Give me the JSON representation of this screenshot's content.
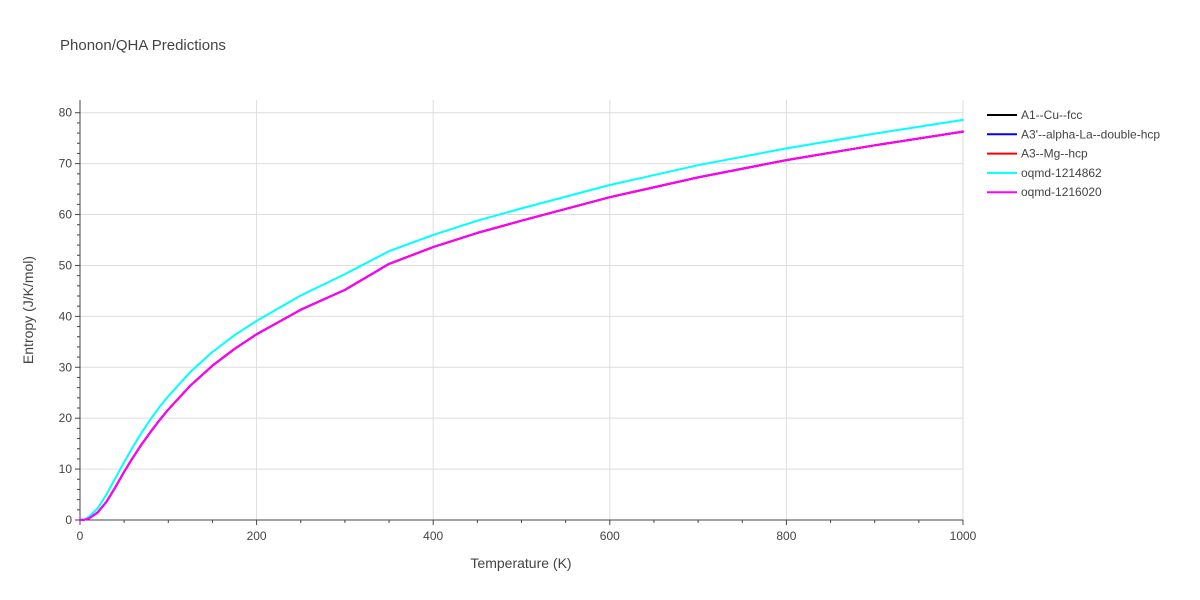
{
  "chart_data": {
    "type": "line",
    "title": "Phonon/QHA Predictions",
    "xlabel": "Temperature (K)",
    "ylabel": "Entropy (J/K/mol)",
    "xlim": [
      0,
      1000
    ],
    "ylim": [
      0,
      82.5
    ],
    "xticks": [
      0,
      200,
      400,
      600,
      800,
      1000
    ],
    "yticks": [
      0,
      10,
      20,
      30,
      40,
      50,
      60,
      70,
      80
    ],
    "grid": true,
    "legend_position": "top-right, outside plot",
    "series": [
      {
        "name": "A1--Cu--fcc",
        "color": "#000000",
        "x": [
          0,
          5,
          10,
          20,
          30,
          40,
          50,
          60,
          70,
          80,
          90,
          100,
          125,
          150,
          175,
          200,
          250,
          300,
          350,
          400,
          450,
          500,
          600,
          700,
          800,
          900,
          1000
        ],
        "y": [
          0,
          0.05,
          0.3,
          1.5,
          3.6,
          6.4,
          9.5,
          12.3,
          14.9,
          17.3,
          19.6,
          21.7,
          26.4,
          30.3,
          33.6,
          36.5,
          41.3,
          45.2,
          50.3,
          53.6,
          56.4,
          58.8,
          63.4,
          67.3,
          70.7,
          73.6,
          76.3
        ]
      },
      {
        "name": "A3'--alpha-La--double-hcp",
        "color": "#0000ff",
        "x": [
          0,
          5,
          10,
          20,
          30,
          40,
          50,
          60,
          70,
          80,
          90,
          100,
          125,
          150,
          175,
          200,
          250,
          300,
          350,
          400,
          450,
          500,
          600,
          700,
          800,
          900,
          1000
        ],
        "y": [
          0,
          0.05,
          0.3,
          1.5,
          3.6,
          6.4,
          9.5,
          12.3,
          14.9,
          17.3,
          19.6,
          21.7,
          26.4,
          30.3,
          33.6,
          36.5,
          41.3,
          45.2,
          50.3,
          53.6,
          56.4,
          58.8,
          63.4,
          67.3,
          70.7,
          73.6,
          76.3
        ]
      },
      {
        "name": "A3--Mg--hcp",
        "color": "#ff0000",
        "x": [
          0,
          5,
          10,
          20,
          30,
          40,
          50,
          60,
          70,
          80,
          90,
          100,
          125,
          150,
          175,
          200,
          250,
          300,
          350,
          400,
          450,
          500,
          600,
          700,
          800,
          900,
          1000
        ],
        "y": [
          0,
          0.05,
          0.3,
          1.5,
          3.6,
          6.4,
          9.5,
          12.3,
          14.9,
          17.3,
          19.6,
          21.7,
          26.4,
          30.3,
          33.6,
          36.5,
          41.3,
          45.2,
          50.3,
          53.6,
          56.4,
          58.8,
          63.4,
          67.3,
          70.7,
          73.6,
          76.3
        ]
      },
      {
        "name": "oqmd-1214862",
        "color": "#00ffff",
        "x": [
          0,
          5,
          10,
          20,
          30,
          40,
          50,
          60,
          70,
          80,
          90,
          100,
          125,
          150,
          175,
          200,
          250,
          300,
          350,
          400,
          450,
          500,
          600,
          700,
          800,
          900,
          1000
        ],
        "y": [
          0,
          0.1,
          0.6,
          2.3,
          5.0,
          8.2,
          11.4,
          14.4,
          17.2,
          19.8,
          22.2,
          24.3,
          29.1,
          33.0,
          36.3,
          39.1,
          44.1,
          48.3,
          52.8,
          56.0,
          58.8,
          61.2,
          65.8,
          69.7,
          73.0,
          75.9,
          78.6
        ]
      },
      {
        "name": "oqmd-1216020",
        "color": "#ff00ff",
        "x": [
          0,
          5,
          10,
          20,
          30,
          40,
          50,
          60,
          70,
          80,
          90,
          100,
          125,
          150,
          175,
          200,
          250,
          300,
          350,
          400,
          450,
          500,
          600,
          700,
          800,
          900,
          1000
        ],
        "y": [
          0,
          0.05,
          0.3,
          1.5,
          3.6,
          6.4,
          9.5,
          12.3,
          14.9,
          17.3,
          19.6,
          21.7,
          26.4,
          30.3,
          33.6,
          36.5,
          41.3,
          45.2,
          50.3,
          53.6,
          56.4,
          58.8,
          63.4,
          67.3,
          70.7,
          73.6,
          76.3
        ]
      }
    ]
  }
}
